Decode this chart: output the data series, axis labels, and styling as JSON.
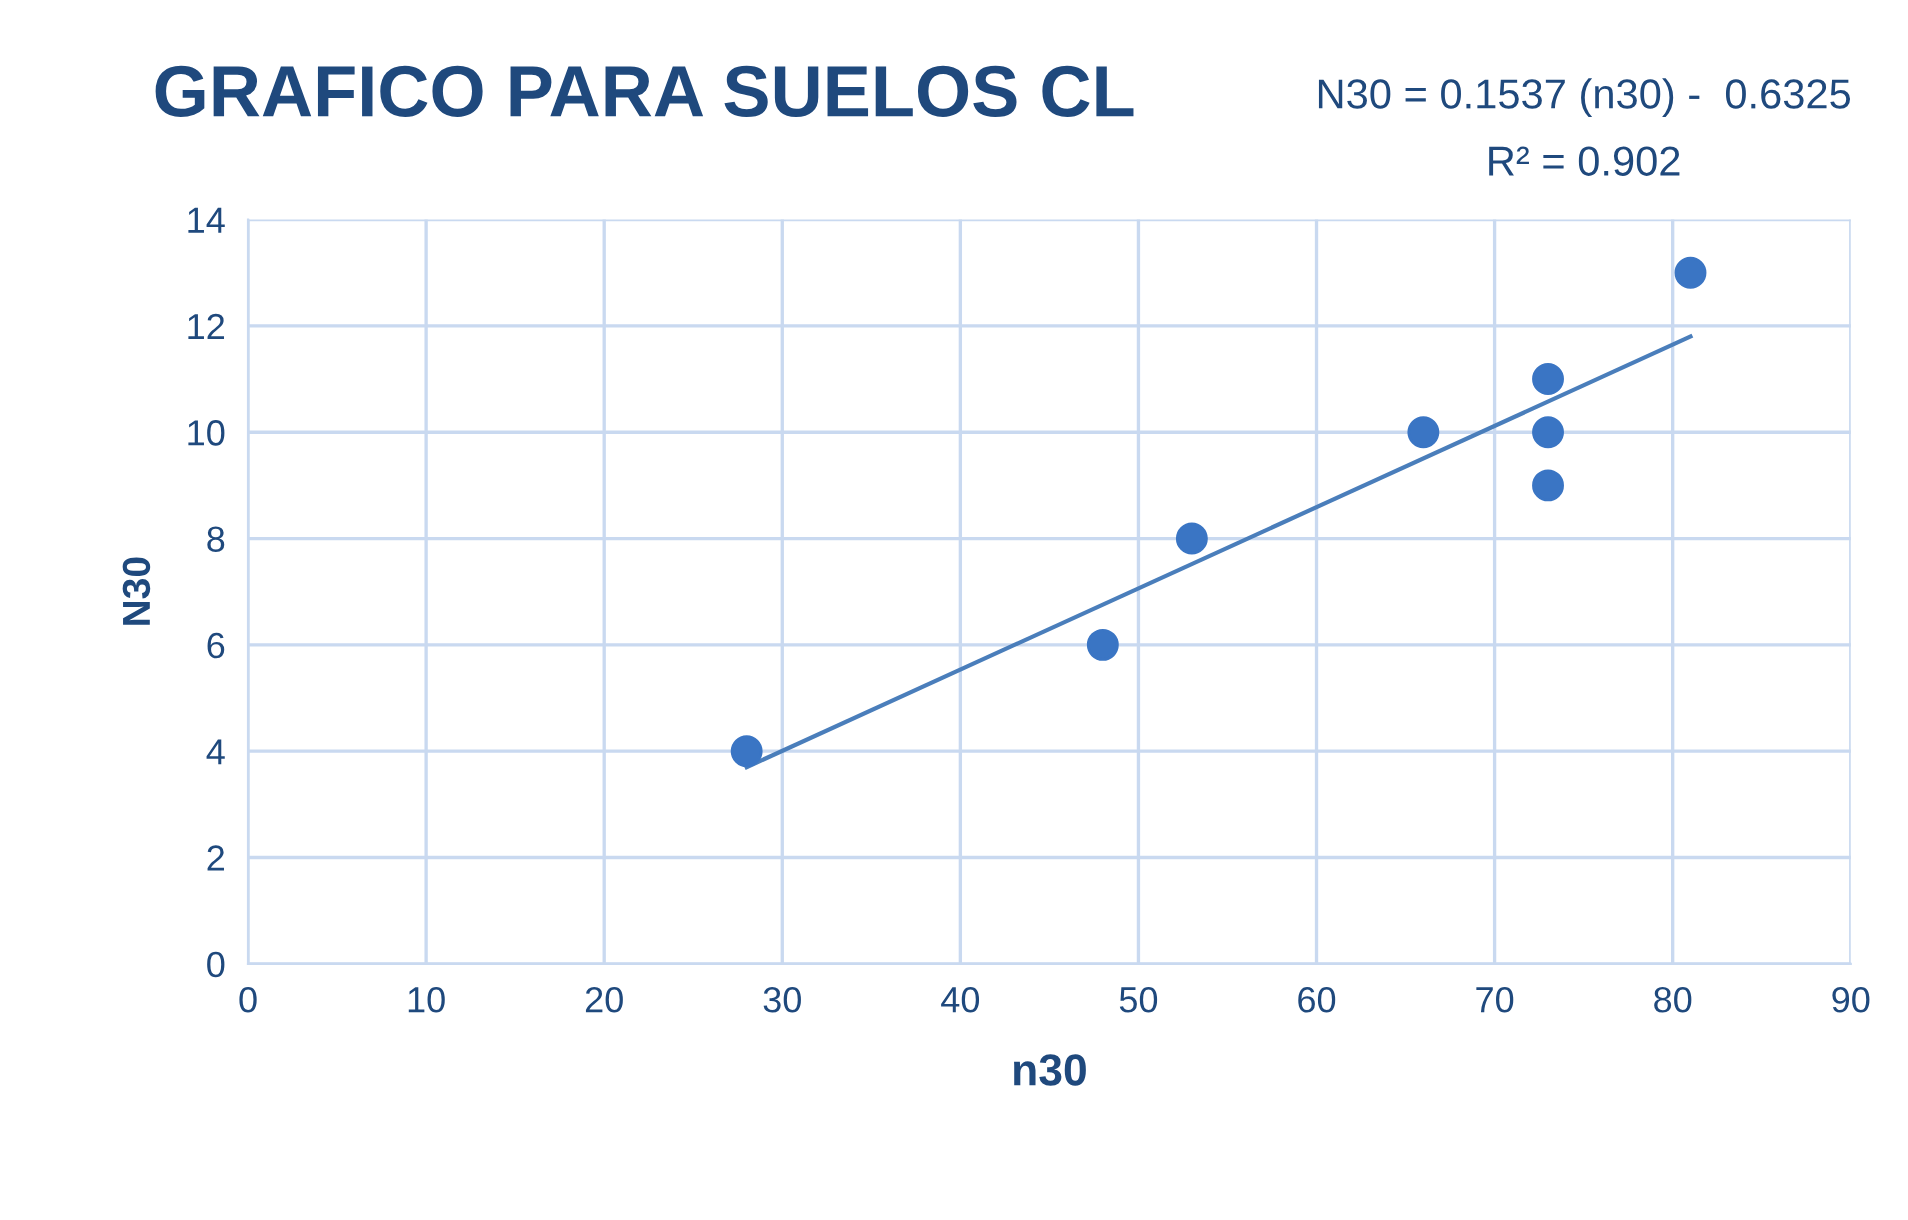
{
  "chart_data": {
    "type": "scatter",
    "title": "GRAFICO PARA SUELOS CL",
    "xlabel": "n30",
    "ylabel": "N30",
    "annotations": [
      "N30 = 0.1537 (n30) -  0.6325",
      "R² = 0.902"
    ],
    "series": [
      {
        "color": "#3a75c4",
        "marker": "circle",
        "x": [
          28,
          48,
          53,
          66,
          73,
          73,
          73,
          81
        ],
        "values": [
          4,
          6,
          8,
          10,
          11,
          10,
          9,
          13
        ]
      },
      {
        "type": "line",
        "color": "#4a7ebb",
        "marker": "none",
        "line_style": "solid",
        "x": [
          28,
          81
        ],
        "values": [
          3.7,
          11.8
        ]
      }
    ],
    "xlim": [
      0,
      90
    ],
    "xticks": [
      0,
      10,
      20,
      30,
      40,
      50,
      60,
      70,
      80,
      90
    ],
    "ylim": [
      0,
      14
    ],
    "yticks": [
      0,
      2,
      4,
      6,
      8,
      10,
      12,
      14
    ],
    "grid": true,
    "legend": false
  }
}
